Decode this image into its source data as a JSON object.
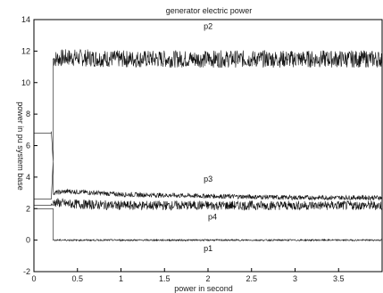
{
  "chart_data": {
    "type": "line",
    "title": "generator electric power",
    "xlabel": "power in second",
    "ylabel": "power in pu system base",
    "xlim": [
      0,
      4
    ],
    "ylim": [
      -2,
      14
    ],
    "grid": false,
    "x_ticks": [
      "0",
      "0.5",
      "1",
      "1.5",
      "2",
      "2.5",
      "3",
      "3.5"
    ],
    "y_ticks": [
      "-2",
      "0",
      "2",
      "4",
      "6",
      "8",
      "10",
      "12",
      "14"
    ],
    "series": [
      {
        "name": "p2",
        "x": [
          0,
          0.199,
          0.2,
          0.22,
          0.22,
          0.4,
          1.0,
          2.0,
          3.0,
          4.0
        ],
        "y": [
          6.8,
          6.8,
          6.9,
          5.0,
          11.5,
          11.6,
          11.5,
          11.5,
          11.5,
          11.5
        ],
        "noise": 0.55
      },
      {
        "name": "p3",
        "x": [
          0,
          0.199,
          0.2,
          0.22,
          0.22,
          0.4,
          1.0,
          2.0,
          3.0,
          4.0
        ],
        "y": [
          2.6,
          2.6,
          2.7,
          5.0,
          3.0,
          3.1,
          2.9,
          2.8,
          2.7,
          2.7
        ],
        "noise": 0.15
      },
      {
        "name": "p4",
        "x": [
          0,
          0.199,
          0.2,
          0.22,
          0.22,
          0.4,
          1.0,
          2.0,
          3.0,
          4.0
        ],
        "y": [
          2.2,
          2.2,
          2.3,
          2.2,
          2.4,
          2.3,
          2.2,
          2.2,
          2.2,
          2.2
        ],
        "noise": 0.3
      },
      {
        "name": "p1",
        "x": [
          0,
          0.199,
          0.2,
          0.22,
          0.22,
          4.0
        ],
        "y": [
          2.0,
          2.0,
          2.0,
          2.0,
          0.0,
          0.0
        ],
        "noise": 0.05
      }
    ]
  }
}
